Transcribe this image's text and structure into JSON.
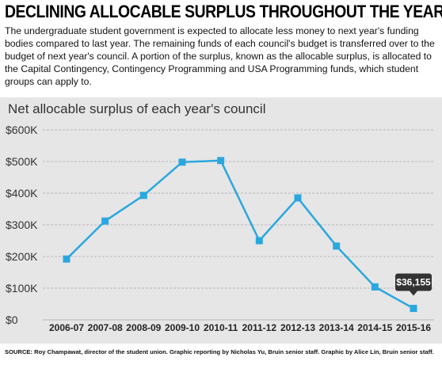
{
  "headline": "DECLINING ALLOCABLE SURPLUS THROUGHOUT THE YEARS",
  "intro": "The undergraduate student government is expected to allocate less money to next year's funding bodies compared to last year. The remaining funds of each council's budget is transferred over to the budget of next year's council. A portion of the surplus, known as the allocable surplus, is allocated to the Capital Contingency, Contingency Programming and USA Programming funds, which student groups can apply to.",
  "source": "SOURCE: Roy Champawat, director of the student union. Graphic reporting by Nicholas Yu, Bruin senior staff. Graphic by Alice Lin, Bruin senior staff.",
  "colors": {
    "line": "#2aa7df",
    "panel": "#e6e6e6",
    "grid": "#b8b8b8",
    "callout": "#333333"
  },
  "chart_data": {
    "type": "line",
    "title": "Net allocable surplus of each year's council",
    "categories": [
      "2006-07",
      "2007-08",
      "2008-09",
      "2009-10",
      "2010-11",
      "2011-12",
      "2012-13",
      "2013-14",
      "2014-15",
      "2015-16"
    ],
    "values": [
      192000,
      312000,
      393000,
      498000,
      503000,
      250000,
      385000,
      233000,
      104000,
      36155
    ],
    "ylim": [
      0,
      600000
    ],
    "yticks": [
      0,
      100000,
      200000,
      300000,
      400000,
      500000,
      600000
    ],
    "ytick_labels": [
      "$0",
      "$100K",
      "$200K",
      "$300K",
      "$400K",
      "$500K",
      "$600K"
    ],
    "grid": true,
    "annotation": {
      "category": "2015-16",
      "text": "$36,155"
    }
  }
}
